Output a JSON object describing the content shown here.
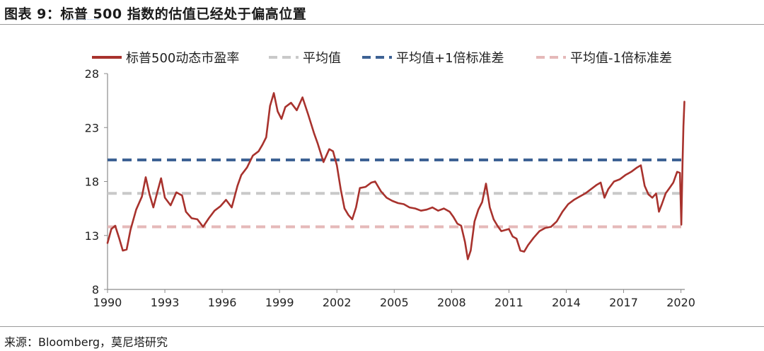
{
  "header": {
    "title": "图表 9：标普 500 指数的估值已经处于偏高位置"
  },
  "footer": {
    "source": "来源：Bloomberg，莫尼塔研究"
  },
  "chart_data": {
    "type": "line",
    "ylim": [
      8,
      28
    ],
    "xlim": [
      1990,
      2020.2
    ],
    "yticks": [
      8,
      13,
      18,
      23,
      28
    ],
    "xticks": [
      1990,
      1993,
      1996,
      1999,
      2002,
      2005,
      2008,
      2011,
      2014,
      2017,
      2020
    ],
    "grid": false,
    "legend_position": "top",
    "series": [
      {
        "name": "标普500动态市盈率",
        "color": "#a8322d",
        "style": "solid",
        "x": [
          1990.0,
          1990.2,
          1990.4,
          1990.6,
          1990.8,
          1991.0,
          1991.2,
          1991.5,
          1991.8,
          1992.0,
          1992.2,
          1992.4,
          1992.6,
          1992.8,
          1993.0,
          1993.3,
          1993.6,
          1993.9,
          1994.1,
          1994.4,
          1994.7,
          1995.0,
          1995.3,
          1995.6,
          1995.9,
          1996.2,
          1996.5,
          1996.8,
          1997.0,
          1997.3,
          1997.6,
          1997.9,
          1998.1,
          1998.3,
          1998.5,
          1998.7,
          1998.9,
          1999.1,
          1999.3,
          1999.6,
          1999.9,
          2000.2,
          2000.5,
          2000.8,
          2001.0,
          2001.3,
          2001.6,
          2001.8,
          2002.0,
          2002.2,
          2002.4,
          2002.6,
          2002.8,
          2003.0,
          2003.2,
          2003.5,
          2003.8,
          2004.0,
          2004.3,
          2004.6,
          2004.9,
          2005.2,
          2005.5,
          2005.8,
          2006.1,
          2006.4,
          2006.7,
          2007.0,
          2007.3,
          2007.6,
          2007.9,
          2008.1,
          2008.3,
          2008.5,
          2008.7,
          2008.85,
          2009.0,
          2009.2,
          2009.4,
          2009.6,
          2009.8,
          2010.0,
          2010.2,
          2010.4,
          2010.6,
          2010.8,
          2011.0,
          2011.2,
          2011.4,
          2011.6,
          2011.8,
          2012.0,
          2012.3,
          2012.6,
          2012.9,
          2013.2,
          2013.5,
          2013.8,
          2014.1,
          2014.4,
          2014.7,
          2015.0,
          2015.3,
          2015.6,
          2015.8,
          2016.0,
          2016.2,
          2016.5,
          2016.8,
          2017.1,
          2017.4,
          2017.7,
          2017.9,
          2018.1,
          2018.3,
          2018.5,
          2018.7,
          2018.85,
          2019.0,
          2019.2,
          2019.4,
          2019.6,
          2019.8,
          2019.95,
          2020.02,
          2020.08,
          2020.13,
          2020.18
        ],
        "y": [
          12.3,
          13.6,
          13.9,
          12.8,
          11.6,
          11.7,
          13.5,
          15.4,
          16.6,
          18.4,
          16.8,
          15.6,
          17.0,
          18.3,
          16.5,
          15.8,
          17.0,
          16.7,
          15.2,
          14.6,
          14.5,
          13.8,
          14.6,
          15.3,
          15.7,
          16.3,
          15.6,
          17.6,
          18.6,
          19.3,
          20.4,
          20.8,
          21.4,
          22.1,
          25.0,
          26.2,
          24.5,
          23.8,
          24.9,
          25.3,
          24.6,
          25.8,
          24.2,
          22.5,
          21.5,
          19.8,
          21.0,
          20.8,
          19.5,
          17.3,
          15.5,
          14.9,
          14.5,
          15.6,
          17.4,
          17.5,
          17.9,
          18.0,
          17.1,
          16.5,
          16.2,
          16.0,
          15.9,
          15.6,
          15.5,
          15.3,
          15.4,
          15.6,
          15.3,
          15.5,
          15.2,
          14.7,
          14.1,
          13.9,
          12.4,
          10.8,
          11.6,
          14.3,
          15.4,
          16.1,
          17.8,
          15.6,
          14.5,
          13.9,
          13.4,
          13.5,
          13.6,
          12.9,
          12.7,
          11.6,
          11.5,
          12.1,
          12.8,
          13.4,
          13.7,
          13.8,
          14.3,
          15.2,
          15.9,
          16.3,
          16.6,
          16.9,
          17.3,
          17.7,
          17.9,
          16.5,
          17.3,
          18.0,
          18.2,
          18.6,
          18.9,
          19.3,
          19.5,
          17.6,
          16.8,
          16.5,
          16.9,
          15.2,
          15.9,
          16.9,
          17.4,
          17.9,
          18.9,
          18.8,
          14.0,
          19.6,
          23.1,
          25.4
        ]
      },
      {
        "name": "平均值",
        "color": "#c9c9c9",
        "style": "dashed",
        "y": [
          16.9,
          16.9
        ]
      },
      {
        "name": "平均值+1倍标准差",
        "color": "#3d6294",
        "style": "dashed",
        "y": [
          20.0,
          20.0
        ]
      },
      {
        "name": "平均值-1倍标准差",
        "color": "#e5b9b9",
        "style": "dashed",
        "y": [
          13.8,
          13.8
        ]
      }
    ]
  }
}
